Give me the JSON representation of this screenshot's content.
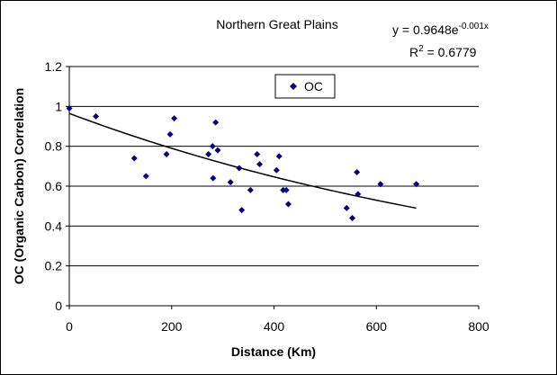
{
  "chart_data": {
    "type": "scatter",
    "title": "Northern Great Plains",
    "xlabel": "Distance (Km)",
    "ylabel": "OC (Organic Carbon) Correlation",
    "xlim": [
      0,
      800
    ],
    "ylim": [
      0,
      1.2
    ],
    "xticks": [
      "0",
      "200",
      "400",
      "600",
      "800"
    ],
    "yticks": [
      "0",
      "0.2",
      "0.4",
      "0.6",
      "0.8",
      "1",
      "1.2"
    ],
    "grid": "horizontal",
    "legend_position": "top-center",
    "colors": {
      "marker": "#000080",
      "trendline": "#000000",
      "gridline": "#000000"
    },
    "series": [
      {
        "name": "OC",
        "points": [
          [
            0,
            0.99
          ],
          [
            52,
            0.95
          ],
          [
            127,
            0.74
          ],
          [
            150,
            0.65
          ],
          [
            190,
            0.76
          ],
          [
            197,
            0.86
          ],
          [
            205,
            0.94
          ],
          [
            272,
            0.76
          ],
          [
            280,
            0.8
          ],
          [
            281,
            0.64
          ],
          [
            286,
            0.92
          ],
          [
            290,
            0.78
          ],
          [
            315,
            0.62
          ],
          [
            332,
            0.69
          ],
          [
            337,
            0.48
          ],
          [
            354,
            0.58
          ],
          [
            367,
            0.76
          ],
          [
            372,
            0.71
          ],
          [
            405,
            0.68
          ],
          [
            410,
            0.75
          ],
          [
            418,
            0.58
          ],
          [
            424,
            0.58
          ],
          [
            428,
            0.51
          ],
          [
            542,
            0.49
          ],
          [
            553,
            0.44
          ],
          [
            562,
            0.67
          ],
          [
            564,
            0.56
          ],
          [
            608,
            0.61
          ],
          [
            678,
            0.61
          ]
        ]
      }
    ],
    "trendline": {
      "type": "exponential",
      "a": 0.9648,
      "b": -0.001,
      "x_range": [
        0,
        678
      ],
      "equation_main": "y = 0.9648e",
      "equation_exp": "-0.001x",
      "r2_main": "R",
      "r2_sup": "2",
      "r2_value": " = 0.6779"
    }
  }
}
